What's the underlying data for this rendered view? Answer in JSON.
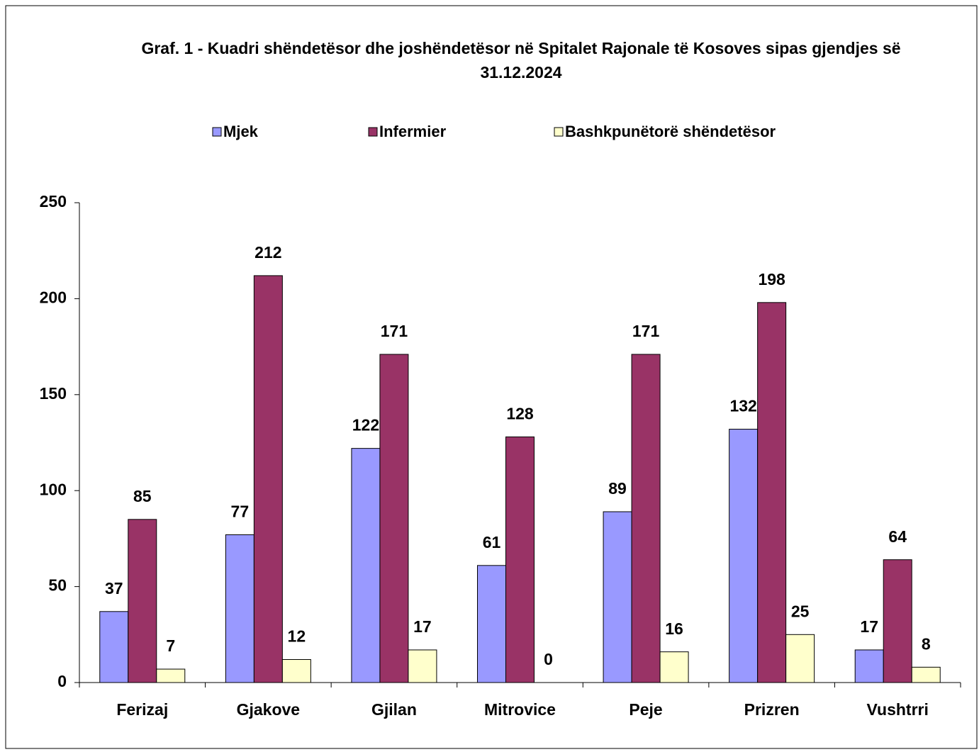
{
  "chart_data": {
    "type": "bar",
    "title": "Graf. 1 - Kuadri shëndetësor dhe joshëndetësor në Spitalet Rajonale të Kosoves sipas gjendjes së",
    "subtitle": "31.12.2024",
    "categories": [
      "Ferizaj",
      "Gjakove",
      "Gjilan",
      "Mitrovice",
      "Peje",
      "Prizren",
      "Vushtrri"
    ],
    "series": [
      {
        "name": "Mjek",
        "color": "#9999ff",
        "values": [
          37,
          77,
          122,
          61,
          89,
          132,
          17
        ]
      },
      {
        "name": "Infermier",
        "color": "#993366",
        "values": [
          85,
          212,
          171,
          128,
          171,
          198,
          64
        ]
      },
      {
        "name": "Bashkpunëtorë shëndetësor",
        "color": "#ffffcc",
        "values": [
          7,
          12,
          17,
          0,
          16,
          25,
          8
        ]
      }
    ],
    "ylim": [
      0,
      250
    ],
    "yticks": [
      0,
      50,
      100,
      150,
      200,
      250
    ],
    "legend": "top"
  }
}
